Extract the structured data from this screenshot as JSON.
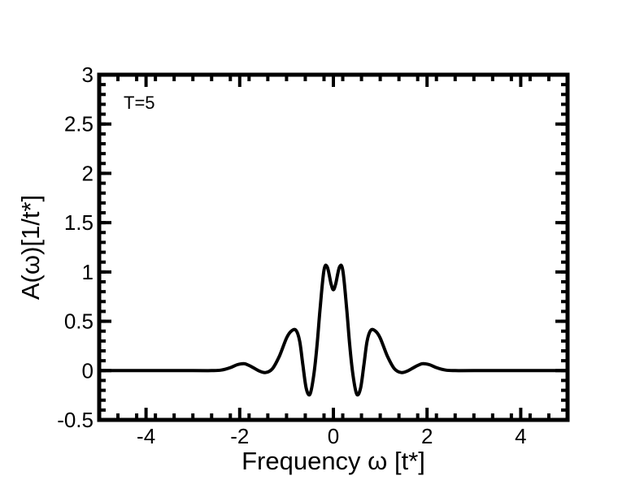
{
  "chart_data": {
    "type": "line",
    "xlabel": "Frequency ω [t*]",
    "ylabel": "A(ω)[1/t*]",
    "annotation": "T=5",
    "xlim": [
      -5,
      5
    ],
    "ylim": [
      -0.5,
      3
    ],
    "xticks": [
      -4,
      -2,
      0,
      2,
      4
    ],
    "yticks": [
      -0.5,
      0,
      0.5,
      1,
      1.5,
      2,
      2.5,
      3
    ],
    "xtick_labels": [
      "-4",
      "-2",
      "0",
      "2",
      "4"
    ],
    "ytick_labels": [
      "-0.5",
      "0",
      "0.5",
      "1",
      "1.5",
      "2",
      "2.5",
      "3"
    ],
    "grid": false,
    "line_color": "#000000",
    "series": [
      {
        "x": [
          -5,
          -3,
          -2.6,
          -2.4,
          -2.2,
          -2.05,
          -1.9,
          -1.75,
          -1.6,
          -1.45,
          -1.3,
          -1.15,
          -1.0,
          -0.9,
          -0.8,
          -0.72,
          -0.65,
          -0.58,
          -0.5,
          -0.42,
          -0.35,
          -0.28,
          -0.2,
          -0.13,
          -0.05,
          0.0,
          0.05,
          0.13,
          0.2,
          0.28,
          0.35,
          0.42,
          0.5,
          0.58,
          0.65,
          0.72,
          0.8,
          0.9,
          1.0,
          1.15,
          1.3,
          1.45,
          1.6,
          1.75,
          1.9,
          2.05,
          2.2,
          2.4,
          2.6,
          3,
          5
        ],
        "y": [
          0,
          0,
          0,
          0.005,
          0.03,
          0.06,
          0.07,
          0.04,
          0.0,
          -0.02,
          0.02,
          0.15,
          0.33,
          0.4,
          0.41,
          0.3,
          0.05,
          -0.18,
          -0.24,
          -0.05,
          0.25,
          0.65,
          1.02,
          1.05,
          0.88,
          0.82,
          0.88,
          1.05,
          1.02,
          0.65,
          0.25,
          -0.05,
          -0.24,
          -0.18,
          0.05,
          0.3,
          0.41,
          0.4,
          0.33,
          0.15,
          0.02,
          -0.02,
          0.0,
          0.04,
          0.07,
          0.06,
          0.03,
          0.005,
          0,
          0,
          0
        ]
      }
    ]
  }
}
